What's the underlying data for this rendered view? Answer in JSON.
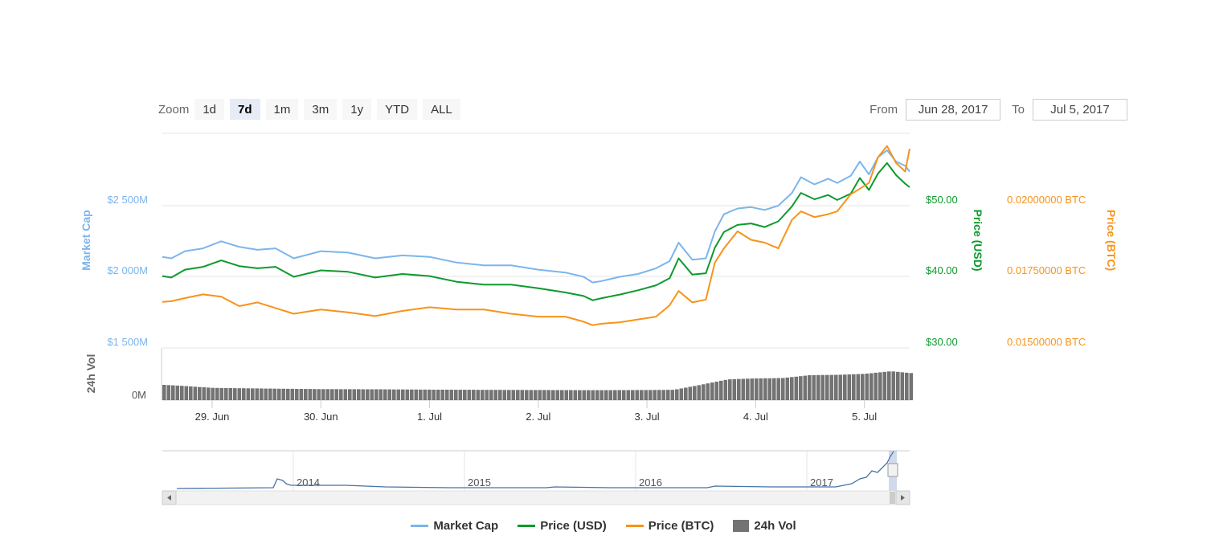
{
  "zoom": {
    "label": "Zoom",
    "buttons": [
      {
        "label": "1d",
        "active": false
      },
      {
        "label": "7d",
        "active": true
      },
      {
        "label": "1m",
        "active": false
      },
      {
        "label": "3m",
        "active": false
      },
      {
        "label": "1y",
        "active": false
      },
      {
        "label": "YTD",
        "active": false
      },
      {
        "label": "ALL",
        "active": false
      }
    ]
  },
  "range": {
    "from_label": "From",
    "from_value": "Jun 28, 2017",
    "to_label": "To",
    "to_value": "Jul 5, 2017"
  },
  "legend": [
    {
      "label": "Market Cap",
      "color": "#7cb5ec",
      "kind": "line"
    },
    {
      "label": "Price (USD)",
      "color": "#0d9a2e",
      "kind": "line"
    },
    {
      "label": "Price (BTC)",
      "color": "#f7931a",
      "kind": "line"
    },
    {
      "label": "24h Vol",
      "color": "#737373",
      "kind": "box"
    }
  ],
  "chart_data": {
    "type": "line",
    "x_labels": [
      "29. Jun",
      "30. Jun",
      "1. Jul",
      "2. Jul",
      "3. Jul",
      "4. Jul",
      "5. Jul"
    ],
    "x_range": [
      "2017-06-28T13:00",
      "2017-07-05T10:00"
    ],
    "axes": {
      "market_cap": {
        "title": "Market Cap",
        "ticks": [
          "$1 500M",
          "$2 000M",
          "$2 500M"
        ],
        "color": "#7cb5ec"
      },
      "price_usd": {
        "title": "Price (USD)",
        "ticks": [
          "$30.00",
          "$40.00",
          "$50.00"
        ],
        "color": "#0d9a2e"
      },
      "price_btc": {
        "title": "Price (BTC)",
        "ticks": [
          "0.01500000 BTC",
          "0.01750000 BTC",
          "0.02000000 BTC"
        ],
        "color": "#f7931a"
      },
      "volume": {
        "title": "24h Vol",
        "ticks": [
          "0M"
        ],
        "color": "#737373"
      }
    },
    "series": [
      {
        "name": "Market Cap",
        "unit": "USD millions",
        "x": [
          "2017-06-28T13:00",
          "2017-06-28T15:00",
          "2017-06-28T18:00",
          "2017-06-28T22:00",
          "2017-06-29T02:00",
          "2017-06-29T06:00",
          "2017-06-29T10:00",
          "2017-06-29T14:00",
          "2017-06-29T18:00",
          "2017-06-30T00:00",
          "2017-06-30T06:00",
          "2017-06-30T12:00",
          "2017-06-30T18:00",
          "2017-07-01T00:00",
          "2017-07-01T06:00",
          "2017-07-01T12:00",
          "2017-07-01T18:00",
          "2017-07-02T00:00",
          "2017-07-02T06:00",
          "2017-07-02T10:00",
          "2017-07-02T12:00",
          "2017-07-02T14:00",
          "2017-07-02T18:00",
          "2017-07-02T22:00",
          "2017-07-03T02:00",
          "2017-07-03T05:00",
          "2017-07-03T07:00",
          "2017-07-03T10:00",
          "2017-07-03T13:00",
          "2017-07-03T15:00",
          "2017-07-03T17:00",
          "2017-07-03T20:00",
          "2017-07-03T23:00",
          "2017-07-04T02:00",
          "2017-07-04T05:00",
          "2017-07-04T08:00",
          "2017-07-04T10:00",
          "2017-07-04T13:00",
          "2017-07-04T16:00",
          "2017-07-04T18:00",
          "2017-07-04T21:00",
          "2017-07-04T23:00",
          "2017-07-05T01:00",
          "2017-07-05T03:00",
          "2017-07-05T05:00",
          "2017-07-05T07:00",
          "2017-07-05T09:00",
          "2017-07-05T10:00"
        ],
        "values": [
          2140,
          2130,
          2180,
          2200,
          2250,
          2210,
          2190,
          2200,
          2130,
          2180,
          2170,
          2130,
          2150,
          2140,
          2100,
          2080,
          2080,
          2050,
          2030,
          2000,
          1960,
          1970,
          2000,
          2020,
          2060,
          2110,
          2240,
          2120,
          2130,
          2320,
          2440,
          2480,
          2490,
          2470,
          2500,
          2590,
          2700,
          2650,
          2690,
          2660,
          2710,
          2810,
          2720,
          2840,
          2890,
          2810,
          2780,
          2740
        ]
      },
      {
        "name": "Price (USD)",
        "unit": "USD",
        "x": [
          "2017-06-28T13:00",
          "2017-06-28T15:00",
          "2017-06-28T18:00",
          "2017-06-28T22:00",
          "2017-06-29T02:00",
          "2017-06-29T06:00",
          "2017-06-29T10:00",
          "2017-06-29T14:00",
          "2017-06-29T18:00",
          "2017-06-30T00:00",
          "2017-06-30T06:00",
          "2017-06-30T12:00",
          "2017-06-30T18:00",
          "2017-07-01T00:00",
          "2017-07-01T06:00",
          "2017-07-01T12:00",
          "2017-07-01T18:00",
          "2017-07-02T00:00",
          "2017-07-02T06:00",
          "2017-07-02T10:00",
          "2017-07-02T12:00",
          "2017-07-02T14:00",
          "2017-07-02T18:00",
          "2017-07-02T22:00",
          "2017-07-03T02:00",
          "2017-07-03T05:00",
          "2017-07-03T07:00",
          "2017-07-03T10:00",
          "2017-07-03T13:00",
          "2017-07-03T15:00",
          "2017-07-03T17:00",
          "2017-07-03T20:00",
          "2017-07-03T23:00",
          "2017-07-04T02:00",
          "2017-07-04T05:00",
          "2017-07-04T08:00",
          "2017-07-04T10:00",
          "2017-07-04T13:00",
          "2017-07-04T16:00",
          "2017-07-04T18:00",
          "2017-07-04T21:00",
          "2017-07-04T23:00",
          "2017-07-05T01:00",
          "2017-07-05T03:00",
          "2017-07-05T05:00",
          "2017-07-05T07:00",
          "2017-07-05T09:00",
          "2017-07-05T10:00"
        ],
        "values": [
          40.1,
          39.9,
          41.0,
          41.4,
          42.3,
          41.5,
          41.2,
          41.4,
          40.0,
          40.9,
          40.7,
          39.9,
          40.4,
          40.1,
          39.3,
          38.9,
          38.9,
          38.4,
          37.8,
          37.3,
          36.7,
          37.0,
          37.5,
          38.1,
          38.8,
          39.8,
          42.6,
          40.3,
          40.5,
          44.1,
          46.3,
          47.3,
          47.5,
          47.0,
          47.8,
          49.9,
          51.8,
          50.9,
          51.5,
          50.8,
          51.7,
          53.9,
          52.2,
          54.5,
          56.0,
          54.3,
          53.1,
          52.6
        ]
      },
      {
        "name": "Price (BTC)",
        "unit": "BTC",
        "x": [
          "2017-06-28T13:00",
          "2017-06-28T15:00",
          "2017-06-28T18:00",
          "2017-06-28T22:00",
          "2017-06-29T02:00",
          "2017-06-29T06:00",
          "2017-06-29T10:00",
          "2017-06-29T14:00",
          "2017-06-29T18:00",
          "2017-06-30T00:00",
          "2017-06-30T06:00",
          "2017-06-30T12:00",
          "2017-06-30T18:00",
          "2017-07-01T00:00",
          "2017-07-01T06:00",
          "2017-07-01T12:00",
          "2017-07-01T18:00",
          "2017-07-02T00:00",
          "2017-07-02T06:00",
          "2017-07-02T10:00",
          "2017-07-02T12:00",
          "2017-07-02T14:00",
          "2017-07-02T18:00",
          "2017-07-02T22:00",
          "2017-07-03T02:00",
          "2017-07-03T05:00",
          "2017-07-03T07:00",
          "2017-07-03T10:00",
          "2017-07-03T13:00",
          "2017-07-03T15:00",
          "2017-07-03T17:00",
          "2017-07-03T20:00",
          "2017-07-03T23:00",
          "2017-07-04T02:00",
          "2017-07-04T05:00",
          "2017-07-04T08:00",
          "2017-07-04T10:00",
          "2017-07-04T13:00",
          "2017-07-04T16:00",
          "2017-07-04T18:00",
          "2017-07-04T21:00",
          "2017-07-04T23:00",
          "2017-07-05T01:00",
          "2017-07-05T03:00",
          "2017-07-05T05:00",
          "2017-07-05T07:00",
          "2017-07-05T09:00",
          "2017-07-05T10:00"
        ],
        "values": [
          0.01662,
          0.01664,
          0.01675,
          0.01688,
          0.0168,
          0.01647,
          0.0166,
          0.0164,
          0.0162,
          0.01635,
          0.01625,
          0.01612,
          0.0163,
          0.01643,
          0.01635,
          0.01635,
          0.0162,
          0.0161,
          0.0161,
          0.01592,
          0.0158,
          0.01585,
          0.0159,
          0.016,
          0.0161,
          0.0165,
          0.017,
          0.0166,
          0.0167,
          0.018,
          0.0185,
          0.0191,
          0.0188,
          0.0187,
          0.0185,
          0.0195,
          0.0198,
          0.0196,
          0.0197,
          0.0198,
          0.0204,
          0.0206,
          0.0208,
          0.0217,
          0.0221,
          0.0215,
          0.0212,
          0.022
        ]
      },
      {
        "name": "24h Vol",
        "unit": "USD millions",
        "x": [
          "2017-06-28T13:00",
          "2017-06-28T18:00",
          "2017-06-29T00:00",
          "2017-06-29T12:00",
          "2017-06-30T00:00",
          "2017-06-30T12:00",
          "2017-07-01T00:00",
          "2017-07-01T12:00",
          "2017-07-02T00:00",
          "2017-07-02T12:00",
          "2017-07-03T00:00",
          "2017-07-03T06:00",
          "2017-07-03T12:00",
          "2017-07-03T18:00",
          "2017-07-04T00:00",
          "2017-07-04T06:00",
          "2017-07-04T12:00",
          "2017-07-04T18:00",
          "2017-07-05T00:00",
          "2017-07-05T06:00",
          "2017-07-05T10:00"
        ],
        "values": [
          85,
          78,
          68,
          64,
          61,
          60,
          58,
          57,
          56,
          55,
          56,
          57,
          85,
          115,
          120,
          122,
          138,
          140,
          145,
          160,
          150
        ]
      }
    ],
    "navigator": {
      "labels": [
        "2014",
        "2015",
        "2016",
        "2017"
      ]
    },
    "grid": true,
    "legend_position": "bottom-center"
  }
}
